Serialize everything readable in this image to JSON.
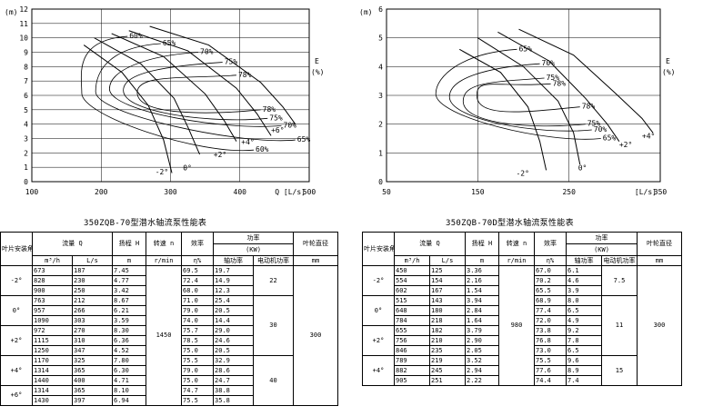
{
  "chart_data": [
    {
      "type": "line",
      "title": "",
      "xlabel": "Q [L/s]",
      "ylabel": "H (m)",
      "xlim": [
        100,
        500
      ],
      "ylim": [
        0,
        12
      ],
      "x_ticks": [
        "100",
        "200",
        "300",
        "400",
        "500"
      ],
      "y_ticks": [
        "0",
        "1",
        "2",
        "3",
        "4",
        "5",
        "6",
        "7",
        "8",
        "9",
        "10",
        "11",
        "12"
      ],
      "y_unit_label": "(m)",
      "x_unit_label": "Q [L/s]",
      "eff_axis_label": "E",
      "eff_axis_unit": "(%)",
      "series": [
        {
          "name": "-2°",
          "points": [
            [
              175,
              9.5
            ],
            [
              230,
              7.6
            ],
            [
              268,
              5.3
            ],
            [
              290,
              2.9
            ],
            [
              302,
              0.6
            ]
          ]
        },
        {
          "name": "0°",
          "points": [
            [
              190,
              10.0
            ],
            [
              257,
              8.2
            ],
            [
              305,
              5.8
            ],
            [
              325,
              3.8
            ],
            [
              342,
              1.9
            ]
          ]
        },
        {
          "name": "+2°",
          "points": [
            [
              215,
              10.3
            ],
            [
              290,
              8.7
            ],
            [
              350,
              6.1
            ],
            [
              378,
              4.2
            ],
            [
              395,
              2.8
            ]
          ]
        },
        {
          "name": "+4°",
          "points": [
            [
              240,
              10.5
            ],
            [
              325,
              9.1
            ],
            [
              395,
              6.5
            ],
            [
              425,
              4.7
            ],
            [
              445,
              3.2
            ]
          ]
        },
        {
          "name": "+6°",
          "points": [
            [
              270,
              10.8
            ],
            [
              355,
              9.5
            ],
            [
              430,
              6.9
            ],
            [
              462,
              5.2
            ],
            [
              480,
              4.0
            ]
          ]
        }
      ],
      "curve_labels": [
        {
          "text": "-2°",
          "x": 278,
          "y": 0.5
        },
        {
          "text": "0°",
          "x": 318,
          "y": 0.8
        },
        {
          "text": "+2°",
          "x": 362,
          "y": 1.7
        },
        {
          "text": "+4°",
          "x": 402,
          "y": 2.6
        },
        {
          "text": "+6°",
          "x": 445,
          "y": 3.4
        }
      ],
      "efficiency_contours": [
        {
          "label": "60%",
          "x": 238,
          "y": 10.1
        },
        {
          "label": "65%",
          "x": 286,
          "y": 9.6
        },
        {
          "label": "70%",
          "x": 340,
          "y": 9.0
        },
        {
          "label": "75%",
          "x": 375,
          "y": 8.3
        },
        {
          "label": "78%",
          "x": 395,
          "y": 7.4
        },
        {
          "label": "78%",
          "x": 430,
          "y": 5.0
        },
        {
          "label": "75%",
          "x": 440,
          "y": 4.4
        },
        {
          "label": "70%",
          "x": 460,
          "y": 3.9
        },
        {
          "label": "65%",
          "x": 480,
          "y": 2.9
        },
        {
          "label": "60%",
          "x": 420,
          "y": 2.2
        }
      ]
    },
    {
      "type": "line",
      "title": "",
      "xlabel": "[L/s]",
      "ylabel": "H (m)",
      "xlim": [
        50,
        350
      ],
      "ylim": [
        0,
        6
      ],
      "x_ticks": [
        "50",
        "150",
        "250",
        "350"
      ],
      "y_ticks": [
        "0",
        "1",
        "2",
        "3",
        "4",
        "5",
        "6"
      ],
      "y_unit_label": "(m)",
      "x_unit_label": "[L/s]",
      "eff_axis_label": "E",
      "eff_axis_unit": "(%)",
      "series": [
        {
          "name": "-2°",
          "points": [
            [
              130,
              4.6
            ],
            [
              175,
              3.8
            ],
            [
              205,
              2.6
            ],
            [
              218,
              1.4
            ],
            [
              225,
              0.4
            ]
          ]
        },
        {
          "name": "0°",
          "points": [
            [
              150,
              5.0
            ],
            [
              200,
              4.0
            ],
            [
              238,
              2.8
            ],
            [
              255,
              1.7
            ],
            [
              262,
              0.6
            ]
          ]
        },
        {
          "name": "+2°",
          "points": [
            [
              172,
              5.2
            ],
            [
              228,
              4.2
            ],
            [
              268,
              2.9
            ],
            [
              292,
              2.0
            ],
            [
              305,
              1.4
            ]
          ]
        },
        {
          "name": "+4°",
          "points": [
            [
              195,
              5.3
            ],
            [
              255,
              4.4
            ],
            [
              300,
              3.1
            ],
            [
              330,
              2.2
            ],
            [
              342,
              1.7
            ]
          ]
        }
      ],
      "curve_labels": [
        {
          "text": "-2°",
          "x": 192,
          "y": 0.2
        },
        {
          "text": "0°",
          "x": 260,
          "y": 0.4
        },
        {
          "text": "+2°",
          "x": 305,
          "y": 1.2
        },
        {
          "text": "+4°",
          "x": 330,
          "y": 1.5
        }
      ],
      "efficiency_contours": [
        {
          "label": "65%",
          "x": 193,
          "y": 4.6
        },
        {
          "label": "70%",
          "x": 218,
          "y": 4.1
        },
        {
          "label": "75%",
          "x": 223,
          "y": 3.6
        },
        {
          "label": "78%",
          "x": 230,
          "y": 3.4
        },
        {
          "label": "78%",
          "x": 262,
          "y": 2.6
        },
        {
          "label": "75%",
          "x": 268,
          "y": 2.0
        },
        {
          "label": "70%",
          "x": 275,
          "y": 1.8
        },
        {
          "label": "65%",
          "x": 285,
          "y": 1.5
        }
      ]
    }
  ],
  "tables": [
    {
      "title": "350ZQB-70型潜水轴流泵性能表",
      "headers": {
        "angle": "叶片安装角度",
        "flow": "流量",
        "flow_sym": "Q",
        "head": "扬程 H",
        "speed": "转速 n",
        "eff": "效率",
        "power": "功率",
        "power_unit": "(KW)",
        "power_shaft": "轴功率",
        "power_motor": "电动机功率",
        "dia": "叶轮直径"
      },
      "units": {
        "q1": "m³/h",
        "q2": "L/s",
        "h": "m",
        "n": "r/min",
        "eff": "η%",
        "dia": "mm"
      },
      "rows": [
        {
          "angle": "-2°",
          "q1": "673",
          "q2": "187",
          "h": "7.45",
          "eff": "69.5",
          "p": "19.7"
        },
        {
          "angle": "",
          "q1": "828",
          "q2": "230",
          "h": "4.77",
          "eff": "72.4",
          "p": "14.9"
        },
        {
          "angle": "",
          "q1": "900",
          "q2": "250",
          "h": "3.42",
          "eff": "68.0",
          "p": "12.3"
        },
        {
          "angle": "0°",
          "q1": "763",
          "q2": "212",
          "h": "8.67",
          "eff": "71.0",
          "p": "25.4"
        },
        {
          "angle": "",
          "q1": "957",
          "q2": "266",
          "h": "6.21",
          "eff": "79.0",
          "p": "20.5"
        },
        {
          "angle": "",
          "q1": "1090",
          "q2": "303",
          "h": "3.59",
          "eff": "74.0",
          "p": "14.4"
        },
        {
          "angle": "+2°",
          "q1": "972",
          "q2": "270",
          "h": "8.30",
          "eff": "75.7",
          "p": "29.0"
        },
        {
          "angle": "",
          "q1": "1115",
          "q2": "310",
          "h": "6.36",
          "eff": "78.5",
          "p": "24.6"
        },
        {
          "angle": "",
          "q1": "1250",
          "q2": "347",
          "h": "4.52",
          "eff": "75.0",
          "p": "20.5"
        },
        {
          "angle": "+4°",
          "q1": "1170",
          "q2": "325",
          "h": "7.80",
          "eff": "75.5",
          "p": "32.9"
        },
        {
          "angle": "",
          "q1": "1314",
          "q2": "365",
          "h": "6.30",
          "eff": "79.0",
          "p": "28.6"
        },
        {
          "angle": "",
          "q1": "1440",
          "q2": "400",
          "h": "4.71",
          "eff": "75.0",
          "p": "24.7"
        },
        {
          "angle": "+6°",
          "q1": "1314",
          "q2": "365",
          "h": "8.10",
          "eff": "74.7",
          "p": "38.8"
        },
        {
          "angle": "",
          "q1": "1430",
          "q2": "397",
          "h": "6.94",
          "eff": "75.5",
          "p": "35.8"
        }
      ],
      "speed": "1450",
      "diameter": "300",
      "motor_groups": [
        {
          "value": "22",
          "rows": 3
        },
        {
          "value": "30",
          "rows": 6
        },
        {
          "value": "40",
          "rows": 5
        }
      ]
    },
    {
      "title": "350ZQB-70D型潜水轴流泵性能表",
      "headers": {
        "angle": "叶片安装角度",
        "flow": "流量",
        "flow_sym": "Q",
        "head": "扬程 H",
        "speed": "转速 n",
        "eff": "效率",
        "power": "功率",
        "power_unit": "(KW)",
        "power_shaft": "轴功率",
        "power_motor": "电动机功率",
        "dia": "叶轮直径"
      },
      "units": {
        "q1": "m³/h",
        "q2": "L/s",
        "h": "m",
        "n": "r/min",
        "eff": "η%",
        "dia": "mm"
      },
      "rows": [
        {
          "angle": "-2°",
          "q1": "450",
          "q2": "125",
          "h": "3.36",
          "eff": "67.0",
          "p": "6.1"
        },
        {
          "angle": "",
          "q1": "554",
          "q2": "154",
          "h": "2.16",
          "eff": "70.2",
          "p": "4.6"
        },
        {
          "angle": "",
          "q1": "602",
          "q2": "167",
          "h": "1.54",
          "eff": "65.5",
          "p": "3.9"
        },
        {
          "angle": "0°",
          "q1": "515",
          "q2": "143",
          "h": "3.94",
          "eff": "68.9",
          "p": "8.0"
        },
        {
          "angle": "",
          "q1": "648",
          "q2": "180",
          "h": "2.84",
          "eff": "77.4",
          "p": "6.5"
        },
        {
          "angle": "",
          "q1": "784",
          "q2": "218",
          "h": "1.64",
          "eff": "72.0",
          "p": "4.9"
        },
        {
          "angle": "+2°",
          "q1": "655",
          "q2": "182",
          "h": "3.79",
          "eff": "73.8",
          "p": "9.2"
        },
        {
          "angle": "",
          "q1": "756",
          "q2": "210",
          "h": "2.90",
          "eff": "76.8",
          "p": "7.8"
        },
        {
          "angle": "",
          "q1": "846",
          "q2": "235",
          "h": "2.05",
          "eff": "73.0",
          "p": "6.5"
        },
        {
          "angle": "+4°",
          "q1": "789",
          "q2": "219",
          "h": "3.52",
          "eff": "75.5",
          "p": "9.6"
        },
        {
          "angle": "",
          "q1": "882",
          "q2": "245",
          "h": "2.94",
          "eff": "77.6",
          "p": "8.9"
        },
        {
          "angle": "",
          "q1": "905",
          "q2": "251",
          "h": "2.22",
          "eff": "74.4",
          "p": "7.4"
        }
      ],
      "speed": "980",
      "diameter": "300",
      "motor_groups": [
        {
          "value": "7.5",
          "rows": 3
        },
        {
          "value": "11",
          "rows": 6
        },
        {
          "value": "15",
          "rows": 3
        }
      ]
    }
  ]
}
